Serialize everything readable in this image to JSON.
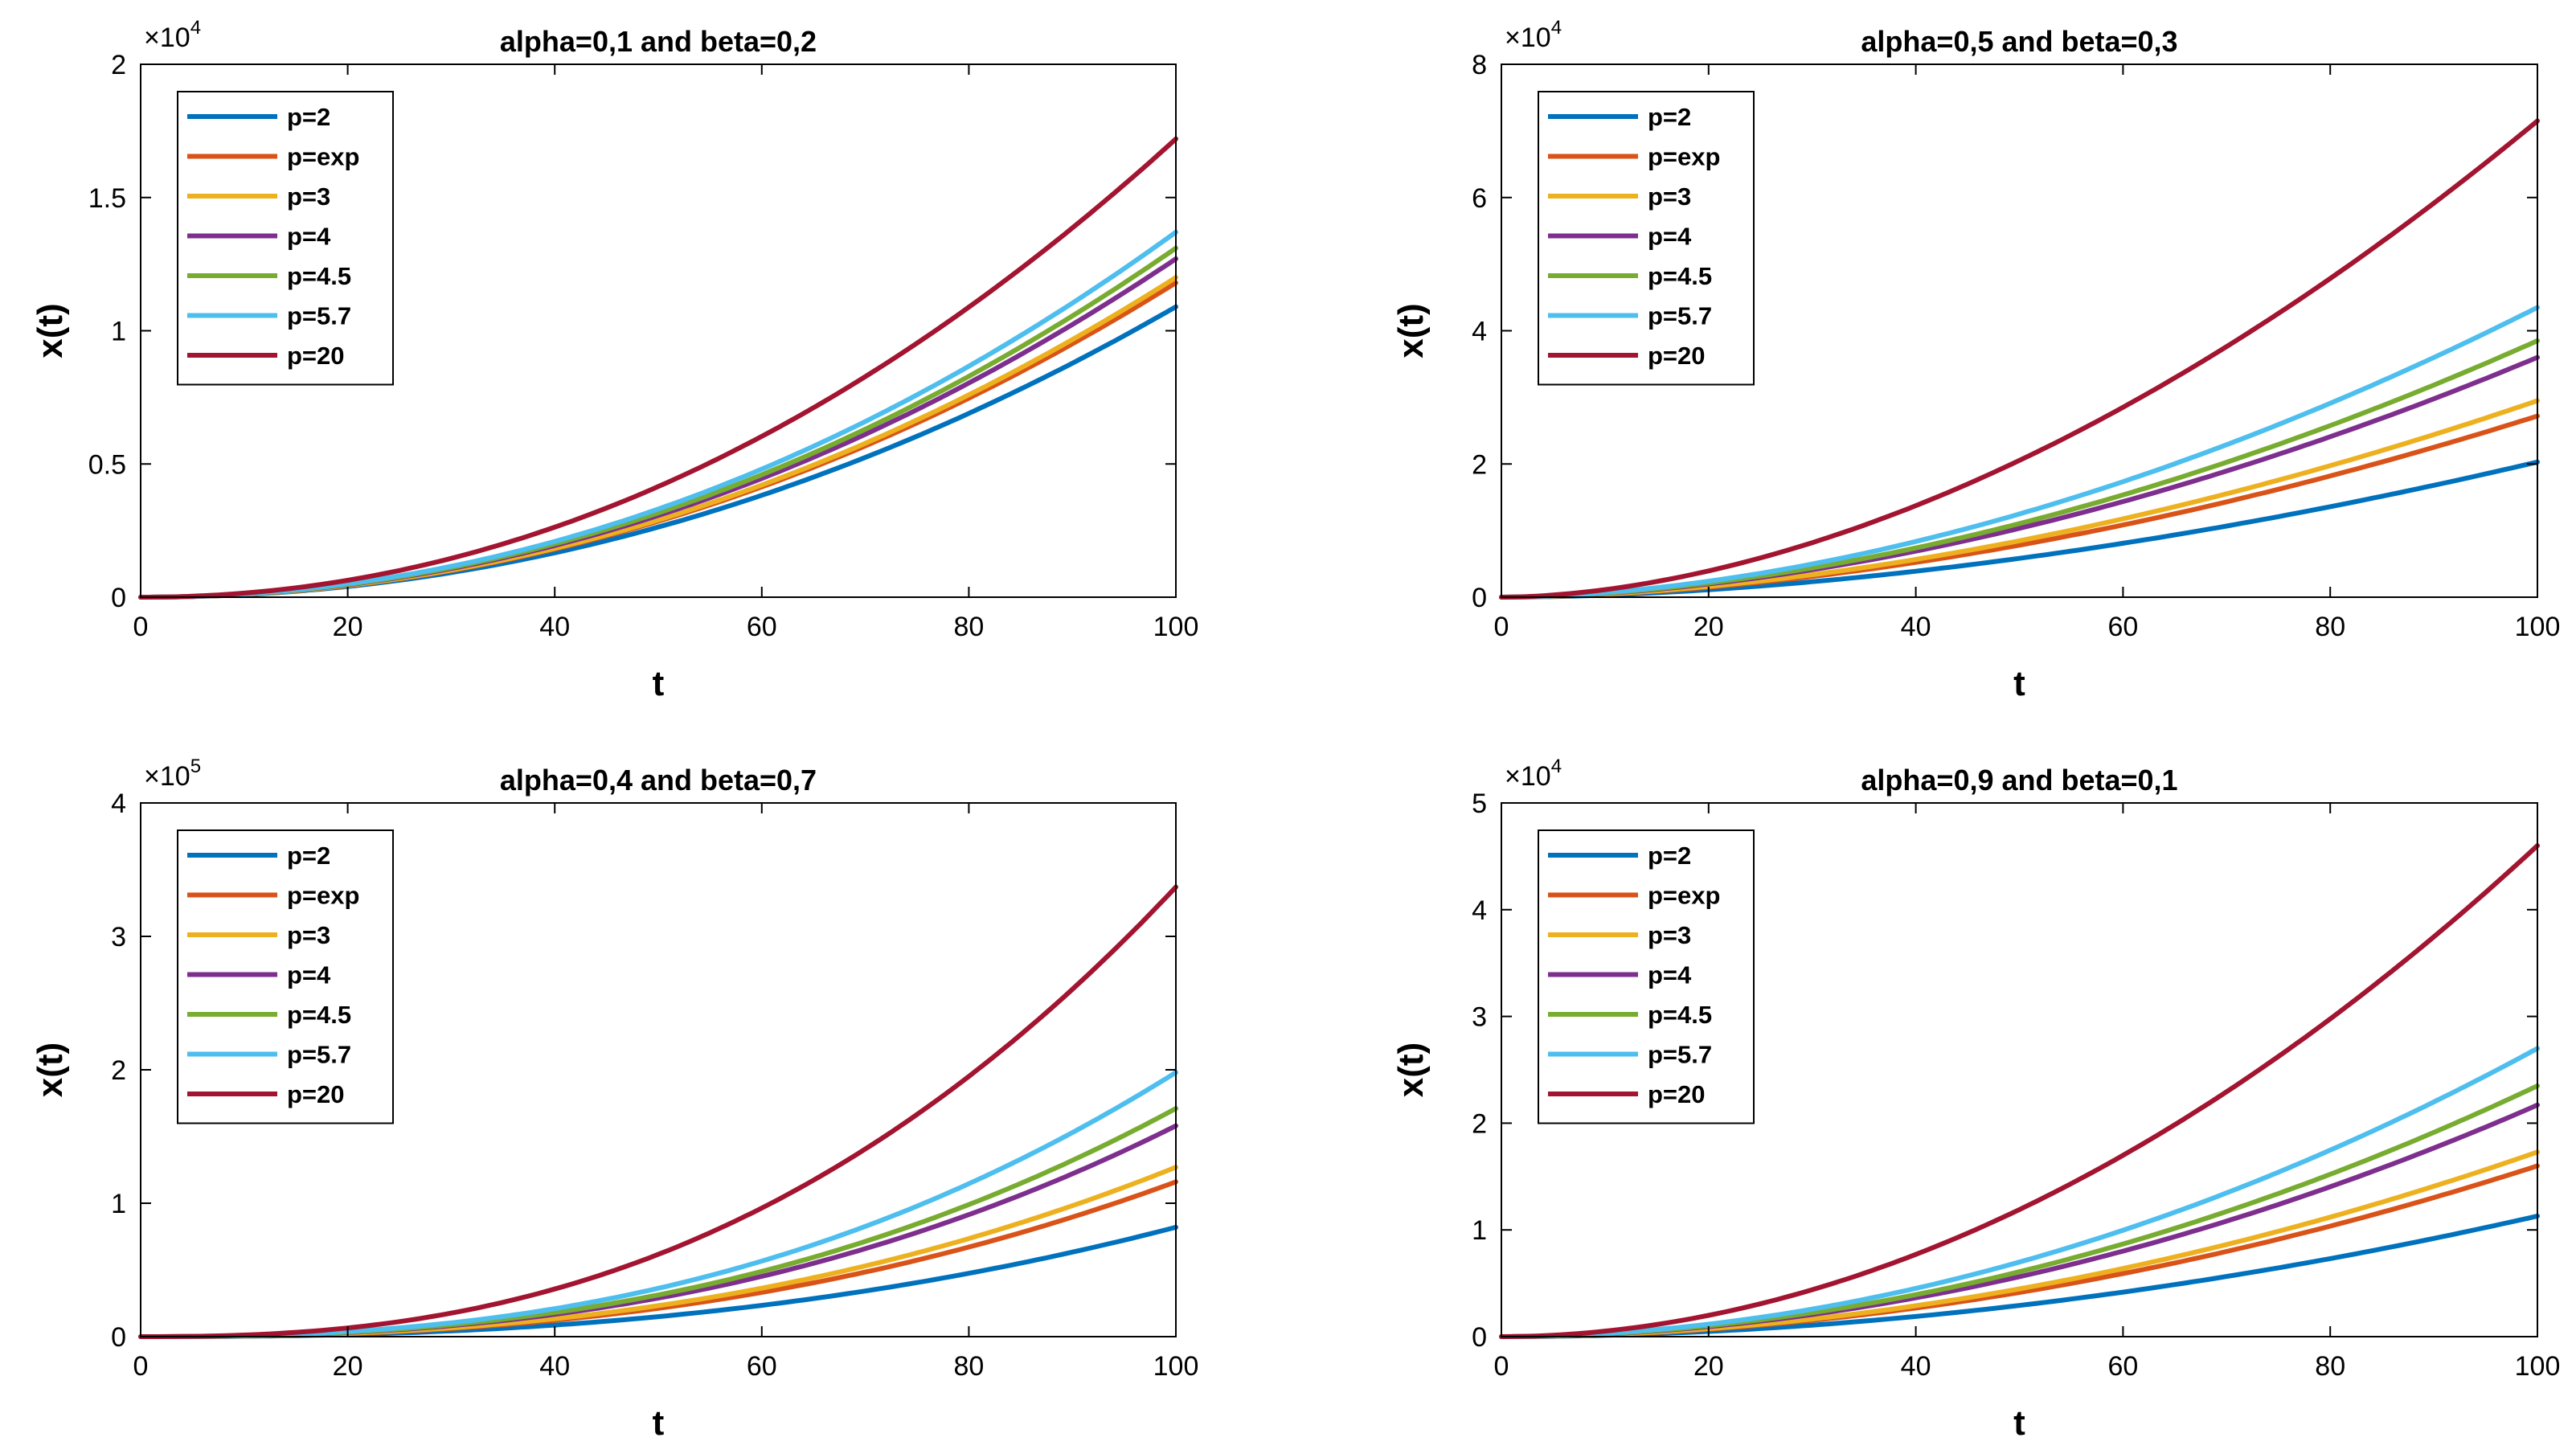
{
  "figure": {
    "colors": {
      "p=2": "#0072BD",
      "p=exp": "#D95319",
      "p=3": "#EDB120",
      "p=4": "#7E2F8E",
      "p=4.5": "#77AC30",
      "p=5.7": "#4DBEEE",
      "p=20": "#A2142F"
    }
  },
  "chart_data": [
    {
      "type": "line",
      "title": "alpha=0,1 and beta=0,2",
      "xlabel": "t",
      "ylabel": "x(t)",
      "xlim": [
        0,
        100
      ],
      "ylim": [
        0,
        2
      ],
      "xticks": [
        "0",
        "20",
        "40",
        "60",
        "80",
        "100"
      ],
      "yticks": [
        "0",
        "0.5",
        "1",
        "1.5",
        "2"
      ],
      "y_exponent_base": "×10",
      "y_exponent_power": "4",
      "legend_position": "top-left",
      "curve_exponent": 2.05,
      "series": [
        {
          "name": "p=2",
          "end": 1.09
        },
        {
          "name": "p=exp",
          "end": 1.18
        },
        {
          "name": "p=3",
          "end": 1.2
        },
        {
          "name": "p=4",
          "end": 1.27
        },
        {
          "name": "p=4.5",
          "end": 1.31
        },
        {
          "name": "p=5.7",
          "end": 1.37
        },
        {
          "name": "p=20",
          "end": 1.72
        }
      ]
    },
    {
      "type": "line",
      "title": "alpha=0,5 and beta=0,3",
      "xlabel": "t",
      "ylabel": "x(t)",
      "xlim": [
        0,
        100
      ],
      "ylim": [
        0,
        8
      ],
      "xticks": [
        "0",
        "20",
        "40",
        "60",
        "80",
        "100"
      ],
      "yticks": [
        "0",
        "2",
        "4",
        "6",
        "8"
      ],
      "y_exponent_base": "×10",
      "y_exponent_power": "4",
      "legend_position": "top-left",
      "curve_exponent": 1.8,
      "series": [
        {
          "name": "p=2",
          "end": 2.03
        },
        {
          "name": "p=exp",
          "end": 2.72
        },
        {
          "name": "p=3",
          "end": 2.95
        },
        {
          "name": "p=4",
          "end": 3.6
        },
        {
          "name": "p=4.5",
          "end": 3.85
        },
        {
          "name": "p=5.7",
          "end": 4.35
        },
        {
          "name": "p=20",
          "end": 7.15
        }
      ]
    },
    {
      "type": "line",
      "title": "alpha=0,4 and beta=0,7",
      "xlabel": "t",
      "ylabel": "x(t)",
      "xlim": [
        0,
        100
      ],
      "ylim": [
        0,
        4
      ],
      "xticks": [
        "0",
        "20",
        "40",
        "60",
        "80",
        "100"
      ],
      "yticks": [
        "0",
        "1",
        "2",
        "3",
        "4"
      ],
      "y_exponent_base": "×10",
      "y_exponent_power": "5",
      "legend_position": "top-left",
      "curve_exponent": 2.45,
      "series": [
        {
          "name": "p=2",
          "end": 0.82
        },
        {
          "name": "p=exp",
          "end": 1.16
        },
        {
          "name": "p=3",
          "end": 1.27
        },
        {
          "name": "p=4",
          "end": 1.58
        },
        {
          "name": "p=4.5",
          "end": 1.71
        },
        {
          "name": "p=5.7",
          "end": 1.98
        },
        {
          "name": "p=20",
          "end": 3.37
        }
      ]
    },
    {
      "type": "line",
      "title": "alpha=0,9 and beta=0,1",
      "xlabel": "t",
      "ylabel": "x(t)",
      "xlim": [
        0,
        100
      ],
      "ylim": [
        0,
        5
      ],
      "xticks": [
        "0",
        "20",
        "40",
        "60",
        "80",
        "100"
      ],
      "yticks": [
        "0",
        "1",
        "2",
        "3",
        "4",
        "5"
      ],
      "y_exponent_base": "×10",
      "y_exponent_power": "4",
      "legend_position": "top-left",
      "curve_exponent": 1.95,
      "series": [
        {
          "name": "p=2",
          "end": 1.13
        },
        {
          "name": "p=exp",
          "end": 1.6
        },
        {
          "name": "p=3",
          "end": 1.73
        },
        {
          "name": "p=4",
          "end": 2.17
        },
        {
          "name": "p=4.5",
          "end": 2.35
        },
        {
          "name": "p=5.7",
          "end": 2.7
        },
        {
          "name": "p=20",
          "end": 4.6
        }
      ]
    }
  ]
}
